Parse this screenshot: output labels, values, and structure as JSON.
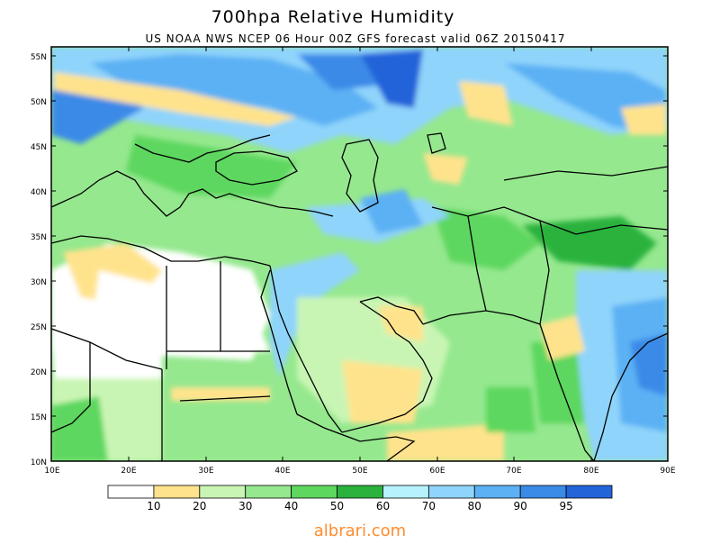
{
  "title": "700hpa Relative Humidity",
  "subtitle": "US NOAA NWS NCEP 06 Hour 00Z GFS forecast valid 06Z 20150417",
  "lat_labels": [
    "55N",
    "50N",
    "45N",
    "40N",
    "35N",
    "30N",
    "25N",
    "20N",
    "15N",
    "10N"
  ],
  "lon_labels": [
    "10E",
    "20E",
    "30E",
    "40E",
    "50E",
    "60E",
    "70E",
    "80E",
    "90E"
  ],
  "legend": {
    "labels": [
      "10",
      "20",
      "30",
      "40",
      "50",
      "60",
      "70",
      "80",
      "90",
      "95"
    ],
    "colors": [
      "#ffffff",
      "#ffe38c",
      "#c9f5b4",
      "#95e88e",
      "#5dd75e",
      "#2ab23c",
      "#b5f2fe",
      "#8fd4fb",
      "#5cb1f4",
      "#3a8ae8",
      "#2364d9"
    ]
  },
  "watermark": "albrari.com"
}
